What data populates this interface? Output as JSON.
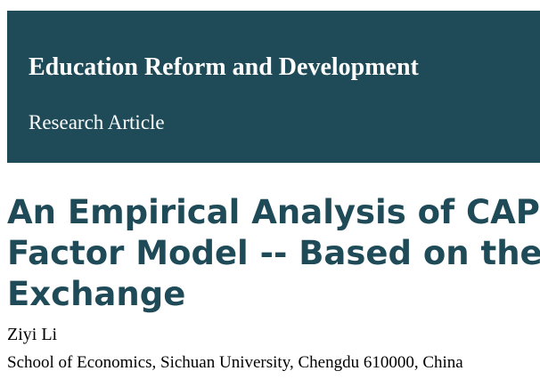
{
  "header": {
    "journal": "Education Reform and Development",
    "article_type": "Research Article",
    "background_color": "#1f4b58"
  },
  "article": {
    "title_lines": [
      "An Empirical Analysis of CAPM a",
      "Factor Model -- Based on the Exc",
      "Exchange"
    ],
    "title_color": "#1f4b58",
    "author": "Ziyi Li",
    "affiliation": "School of Economics, Sichuan University, Chengdu 610000, China"
  }
}
